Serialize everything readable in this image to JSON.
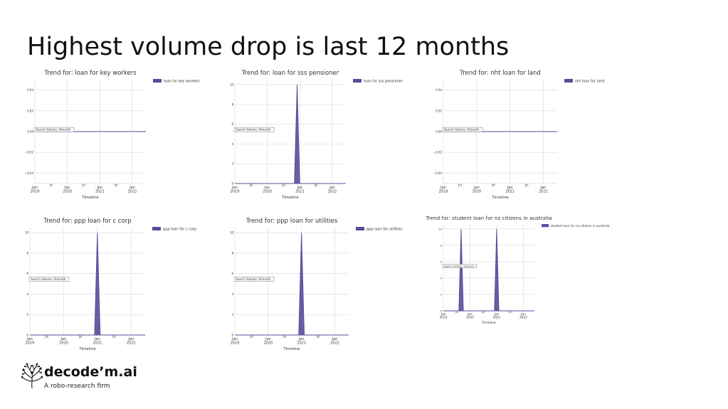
{
  "slide": {
    "title": "Highest volume drop is last 12 months"
  },
  "logo": {
    "name": "decode’m.ai",
    "tagline": "A robo-research firm",
    "icon": "brain-network-icon"
  },
  "colors": {
    "series": "#5b4a9a",
    "grid": "#d8d8d8",
    "axis": "#555555"
  },
  "chart_data": [
    {
      "type": "area",
      "title": "Trend for: loan for key workers",
      "xlabel": "Timeline",
      "ylabel": "",
      "annotation": "Search Volume: 0/month",
      "legend": "loan for key workers",
      "legend_position": "top-right",
      "grid": true,
      "xlim": [
        "2019-01",
        "2022-06"
      ],
      "ylim": [
        -0.05,
        0.05
      ],
      "yticks": [
        -0.04,
        -0.02,
        0.0,
        0.02,
        0.04
      ],
      "ytick_labels": [
        "−0.04",
        "−0.02",
        "0.00",
        "0.02",
        "0.04"
      ],
      "xticks": [
        {
          "x": "2019-01",
          "label": "Jan\n2019"
        },
        {
          "x": "2019-07",
          "label": "Jul"
        },
        {
          "x": "2020-01",
          "label": "Jan\n2020"
        },
        {
          "x": "2020-07",
          "label": "Jul"
        },
        {
          "x": "2021-01",
          "label": "Jan\n2021"
        },
        {
          "x": "2021-07",
          "label": "Jul"
        },
        {
          "x": "2022-01",
          "label": "Jan\n2022"
        }
      ],
      "series": [
        {
          "name": "loan for key workers",
          "x": [
            "2019-01",
            "2022-06"
          ],
          "y": [
            0,
            0
          ]
        }
      ]
    },
    {
      "type": "area",
      "title": "Trend for: loan for sss pensioner",
      "xlabel": "Timeline",
      "ylabel": "",
      "annotation": "Search Volume: 0/month",
      "legend": "loan for sss pensioner",
      "legend_position": "top-right",
      "grid": true,
      "xlim": [
        "2019-01",
        "2022-06"
      ],
      "ylim": [
        0,
        10.5
      ],
      "yticks": [
        0,
        2,
        4,
        6,
        8,
        10
      ],
      "ytick_labels": [
        "0",
        "2",
        "4",
        "6",
        "8",
        "10"
      ],
      "xticks": [
        {
          "x": "2019-01",
          "label": "Jan\n2019"
        },
        {
          "x": "2019-07",
          "label": "Jul"
        },
        {
          "x": "2020-01",
          "label": "Jan\n2020"
        },
        {
          "x": "2020-07",
          "label": "Jul"
        },
        {
          "x": "2021-01",
          "label": "Jan\n2021"
        },
        {
          "x": "2021-07",
          "label": "Jul"
        },
        {
          "x": "2022-01",
          "label": "Jan\n2022"
        }
      ],
      "series": [
        {
          "name": "loan for sss pensioner",
          "x": [
            "2019-01",
            "2020-11",
            "2020-12",
            "2021-01",
            "2022-06"
          ],
          "y": [
            0,
            0,
            10,
            0,
            0
          ]
        }
      ]
    },
    {
      "type": "area",
      "title": "Trend for: nht loan for land",
      "xlabel": "Timeline",
      "ylabel": "",
      "annotation": "Search Volume: 0/month",
      "legend": "nht loan for land",
      "legend_position": "top-right",
      "grid": true,
      "xlim": [
        "2019-01",
        "2022-06"
      ],
      "ylim": [
        -0.05,
        0.05
      ],
      "yticks": [
        -0.04,
        -0.02,
        0.0,
        0.02,
        0.04
      ],
      "ytick_labels": [
        "−0.04",
        "−0.02",
        "0.00",
        "0.02",
        "0.04"
      ],
      "xticks": [
        {
          "x": "2019-01",
          "label": "Jan\n2019"
        },
        {
          "x": "2019-07",
          "label": "Jul"
        },
        {
          "x": "2020-01",
          "label": "Jan\n2020"
        },
        {
          "x": "2020-07",
          "label": "Jul"
        },
        {
          "x": "2021-01",
          "label": "Jan\n2021"
        },
        {
          "x": "2021-07",
          "label": "Jul"
        },
        {
          "x": "2022-01",
          "label": "Jan\n2022"
        }
      ],
      "series": [
        {
          "name": "nht loan for land",
          "x": [
            "2019-01",
            "2022-06"
          ],
          "y": [
            0,
            0
          ]
        }
      ]
    },
    {
      "type": "area",
      "title": "Trend for: ppp loan for c corp",
      "xlabel": "Timeline",
      "ylabel": "",
      "annotation": "Search Volume: 0/month",
      "legend": "ppp loan for c corp",
      "legend_position": "top-right",
      "grid": true,
      "xlim": [
        "2019-01",
        "2022-06"
      ],
      "ylim": [
        0,
        10.5
      ],
      "yticks": [
        0,
        2,
        4,
        6,
        8,
        10
      ],
      "ytick_labels": [
        "0",
        "2",
        "4",
        "6",
        "8",
        "10"
      ],
      "xticks": [
        {
          "x": "2019-01",
          "label": "Jan\n2019"
        },
        {
          "x": "2019-07",
          "label": "Jul"
        },
        {
          "x": "2020-01",
          "label": "Jan\n2020"
        },
        {
          "x": "2020-07",
          "label": "Jul"
        },
        {
          "x": "2021-01",
          "label": "Jan\n2021"
        },
        {
          "x": "2021-07",
          "label": "Jul"
        },
        {
          "x": "2022-01",
          "label": "Jan\n2022"
        }
      ],
      "series": [
        {
          "name": "ppp loan for c corp",
          "x": [
            "2019-01",
            "2020-12",
            "2021-01",
            "2021-02",
            "2022-06"
          ],
          "y": [
            0,
            0,
            10,
            0,
            0
          ]
        }
      ]
    },
    {
      "type": "area",
      "title": "Trend for: ppp loan for utilities",
      "xlabel": "Timeline",
      "ylabel": "",
      "annotation": "Search Volume: 0/month",
      "legend": "ppp loan for utilities",
      "legend_position": "top-right",
      "grid": true,
      "xlim": [
        "2019-01",
        "2022-06"
      ],
      "ylim": [
        0,
        10.5
      ],
      "yticks": [
        0,
        2,
        4,
        6,
        8,
        10
      ],
      "ytick_labels": [
        "0",
        "2",
        "4",
        "6",
        "8",
        "10"
      ],
      "xticks": [
        {
          "x": "2019-01",
          "label": "Jan\n2019"
        },
        {
          "x": "2019-07",
          "label": "Jul"
        },
        {
          "x": "2020-01",
          "label": "Jan\n2020"
        },
        {
          "x": "2020-07",
          "label": "Jul"
        },
        {
          "x": "2021-01",
          "label": "Jan\n2021"
        },
        {
          "x": "2021-07",
          "label": "Jul"
        },
        {
          "x": "2022-01",
          "label": "Jan\n2022"
        }
      ],
      "series": [
        {
          "name": "ppp loan for utilities",
          "x": [
            "2019-01",
            "2020-12",
            "2021-01",
            "2021-02",
            "2022-06"
          ],
          "y": [
            0,
            0,
            10,
            0,
            0
          ]
        }
      ]
    },
    {
      "type": "area",
      "title": "Trend for: student loan for nz citizens in australia",
      "xlabel": "Timeline",
      "ylabel": "",
      "annotation": "Search Volume: 0/month",
      "legend": "student loan for nz citizens in australia",
      "legend_position": "top-right",
      "grid": true,
      "xlim": [
        "2019-01",
        "2022-06"
      ],
      "ylim": [
        0,
        10.5
      ],
      "yticks": [
        0,
        2,
        4,
        6,
        8,
        10
      ],
      "ytick_labels": [
        "0",
        "2",
        "4",
        "6",
        "8",
        "10"
      ],
      "xticks": [
        {
          "x": "2019-01",
          "label": "Jan\n2019"
        },
        {
          "x": "2019-07",
          "label": "Jul"
        },
        {
          "x": "2020-01",
          "label": "Jan\n2020"
        },
        {
          "x": "2020-07",
          "label": "Jul"
        },
        {
          "x": "2021-01",
          "label": "Jan\n2021"
        },
        {
          "x": "2021-07",
          "label": "Jul"
        },
        {
          "x": "2022-01",
          "label": "Jan\n2022"
        }
      ],
      "series": [
        {
          "name": "student loan for nz citizens in australia",
          "x": [
            "2019-01",
            "2019-08",
            "2019-09",
            "2019-10",
            "2020-12",
            "2021-01",
            "2021-02",
            "2022-06"
          ],
          "y": [
            0,
            0,
            10,
            0,
            0,
            10,
            0,
            0
          ]
        }
      ]
    }
  ]
}
